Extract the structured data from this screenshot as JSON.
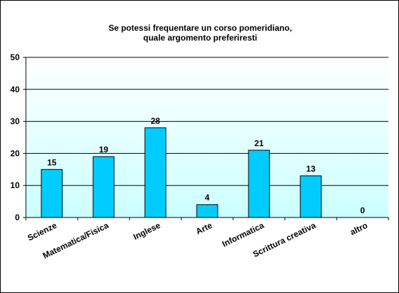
{
  "chart_data": {
    "type": "bar",
    "title_lines": [
      "Se potessi  frequentare un corso  pomeridiano,",
      "quale argomento preferiresti"
    ],
    "categories": [
      "Scienze",
      "Matematica/Fisica",
      "Inglese",
      "Arte",
      "Informatica",
      "Scrittura creativa",
      "altro"
    ],
    "values": [
      15,
      19,
      28,
      4,
      21,
      13,
      0
    ],
    "data_labels": [
      "15",
      "19",
      "28",
      "4",
      "21",
      "13",
      "0"
    ],
    "ylim": [
      0,
      50
    ],
    "yticks": [
      0,
      10,
      20,
      30,
      40,
      50
    ],
    "ytick_labels": [
      "0",
      "10",
      "20",
      "30",
      "40",
      "50"
    ],
    "grid": true,
    "legend": "none",
    "colors": {
      "bar_fill": "#00ccff",
      "bar_stroke": "#000000",
      "plot_bg_top": "#ffffff",
      "plot_bg_bottom": "#ccffff",
      "grid": "#000000"
    }
  }
}
